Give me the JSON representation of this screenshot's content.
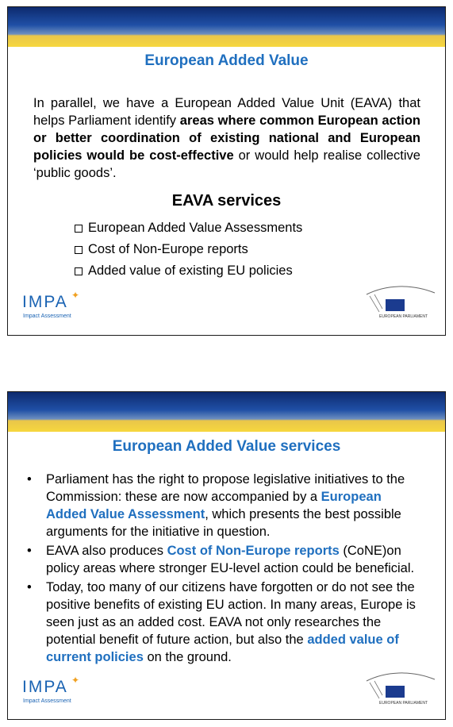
{
  "slide1": {
    "title": "European Added Value",
    "para_plain_1": "In parallel, we have a European Added Value Unit (EAVA) that helps Parliament identify ",
    "para_bold": "areas where common European action or better coordination of existing national and European policies would be cost-effective",
    "para_plain_2": " or would help realise collective ‘public goods’.",
    "subhead": "EAVA services",
    "items": [
      "European Added Value Assessments",
      "Cost of Non-Europe reports",
      "Added value of existing EU policies"
    ]
  },
  "slide2": {
    "title": "European Added Value services",
    "b1_a": "Parliament has the right to propose legislative initiatives to the Commission: these are now accompanied by a ",
    "b1_hl": "European Added Value Assessment",
    "b1_b": ", which presents the best possible arguments for the initiative in question.",
    "b2_a": "EAVA also produces ",
    "b2_hl": "Cost of Non-Europe reports",
    "b2_b": " (CoNE)on policy areas where stronger EU-level action could be beneficial.",
    "b3_a": "Today, too many of our citizens have forgotten or do not see the positive benefits of existing EU action. In many areas, Europe is seen just as an added cost. EAVA not only researches the potential benefit of future action, but also the ",
    "b3_hl": "added value of current policies",
    "b3_b": " on the ground."
  },
  "logos": {
    "impa": "IMPA",
    "impa_sub": "Impact Assessment",
    "ep": "EUROPEAN PARLIAMENT"
  },
  "colors": {
    "accent": "#1f6fbf",
    "banner_blue": "#0d2a6e",
    "banner_yellow": "#f6d73e"
  },
  "icons": {
    "checkbox": "checkbox-icon",
    "bullet": "bullet-icon"
  }
}
